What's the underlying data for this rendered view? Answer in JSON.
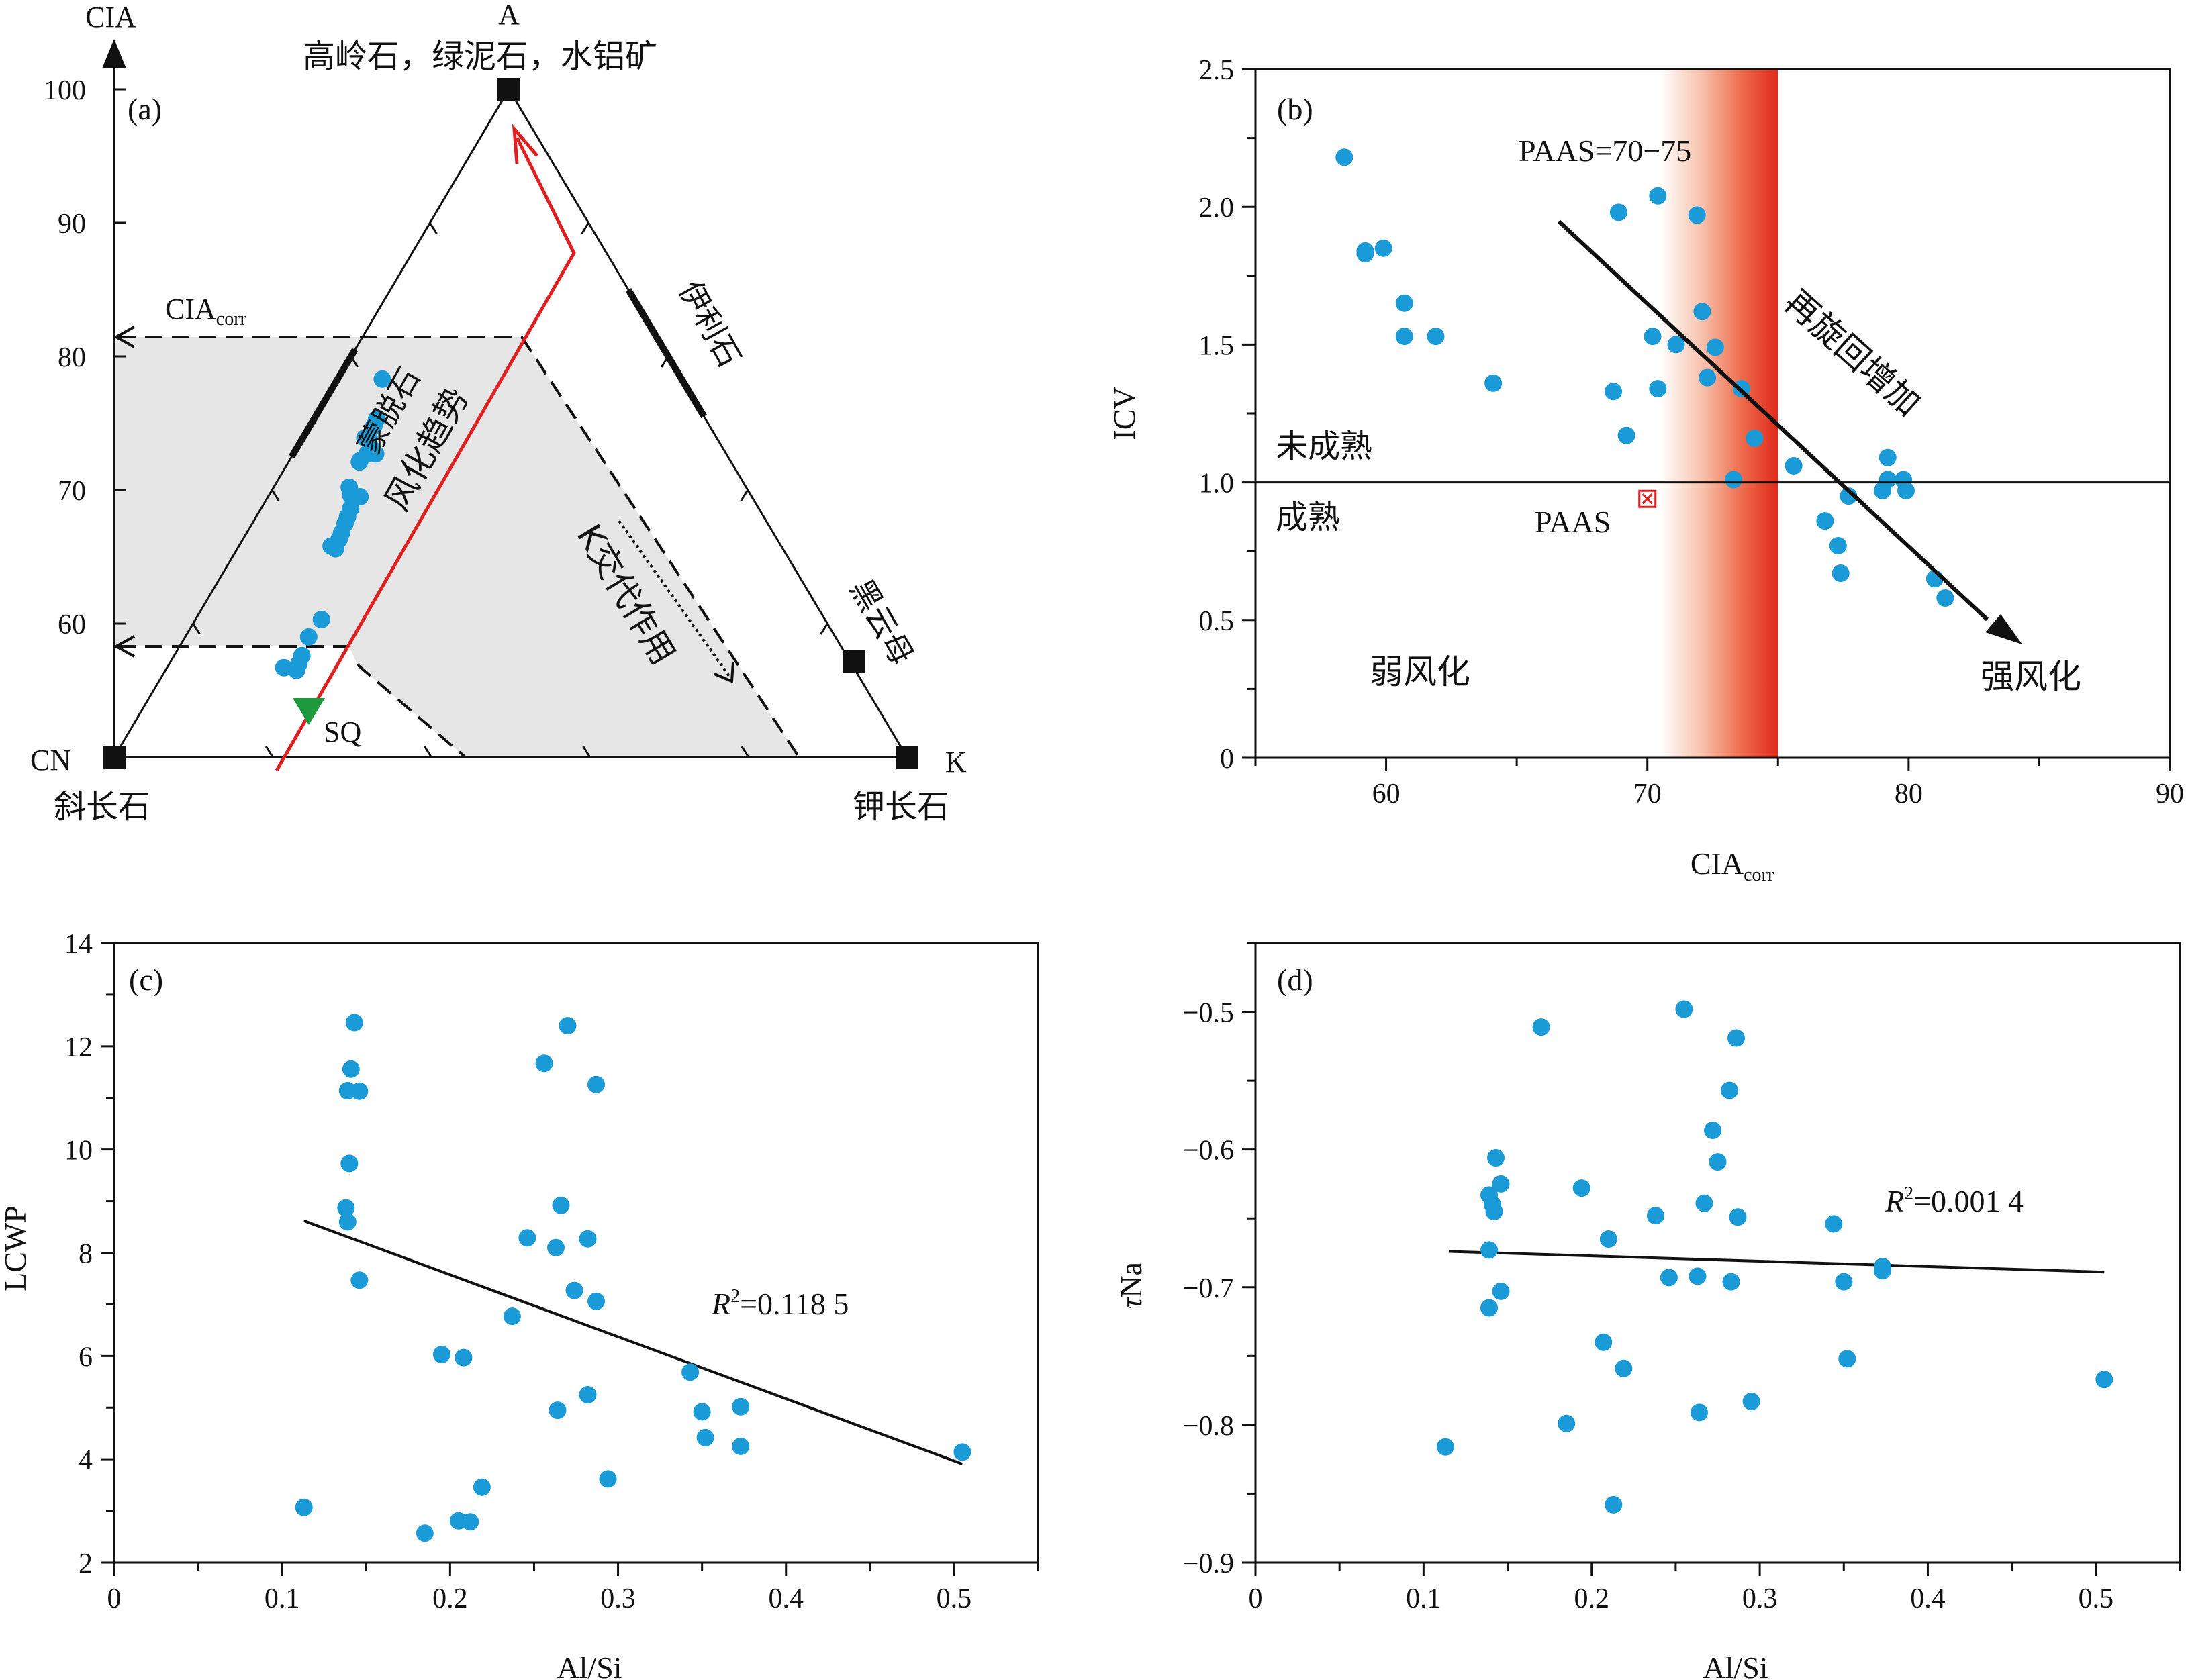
{
  "chart_data": [
    {
      "id": "a",
      "type": "ternary",
      "panel_label": "(a)",
      "yaxis_label": "CIA",
      "yticks": [
        60,
        70,
        80,
        90,
        100
      ],
      "ylim": [
        50,
        100
      ],
      "vertex_labels": {
        "top": "A",
        "top_minerals": "高岭石，绿泥石，水铝矿",
        "left": "CN",
        "left_mineral": "斜长石",
        "right": "K",
        "right_mineral": "钾长石"
      },
      "mineral_markers": [
        {
          "label": "黑云母"
        },
        {
          "label": "蒙脱石"
        },
        {
          "label": "伊利石"
        }
      ],
      "corrections": {
        "label_main": "CIA",
        "label_sub": "corr",
        "cia_values": [
          81,
          58
        ]
      },
      "sq_label": "SQ",
      "trend_label": "风化趋势",
      "k_label": "K交代作用",
      "points": [
        {
          "cia": 56.7,
          "k": 0.17
        },
        {
          "cia": 56.5,
          "k": 0.19
        },
        {
          "cia": 57.0,
          "k": 0.19
        },
        {
          "cia": 57.6,
          "k": 0.19
        },
        {
          "cia": 59.0,
          "k": 0.19
        },
        {
          "cia": 60.3,
          "k": 0.2
        },
        {
          "cia": 65.8,
          "k": 0.17
        },
        {
          "cia": 65.6,
          "k": 0.18
        },
        {
          "cia": 66.3,
          "k": 0.18
        },
        {
          "cia": 66.8,
          "k": 0.18
        },
        {
          "cia": 67.5,
          "k": 0.18
        },
        {
          "cia": 68.0,
          "k": 0.18
        },
        {
          "cia": 68.6,
          "k": 0.18
        },
        {
          "cia": 69.6,
          "k": 0.17
        },
        {
          "cia": 70.2,
          "k": 0.16
        },
        {
          "cia": 69.5,
          "k": 0.19
        },
        {
          "cia": 72.1,
          "k": 0.16
        },
        {
          "cia": 72.2,
          "k": 0.16
        },
        {
          "cia": 73.9,
          "k": 0.15
        },
        {
          "cia": 72.7,
          "k": 0.17
        },
        {
          "cia": 73.9,
          "k": 0.16
        },
        {
          "cia": 74.8,
          "k": 0.16
        },
        {
          "cia": 75.3,
          "k": 0.16
        },
        {
          "cia": 73.0,
          "k": 0.18
        },
        {
          "cia": 72.7,
          "k": 0.19
        },
        {
          "cia": 78.3,
          "k": 0.13
        }
      ]
    },
    {
      "id": "b",
      "type": "scatter",
      "panel_label": "(b)",
      "xlabel": "CIA",
      "xlabel_sub": "corr",
      "ylabel": "ICV",
      "xlim": [
        55,
        90
      ],
      "ylim": [
        0,
        2.5
      ],
      "xticks": [
        60,
        70,
        80,
        90
      ],
      "yticks": [
        0,
        0.5,
        1.0,
        1.5,
        2.0,
        2.5
      ],
      "ytick_labels": [
        "0",
        "0.5",
        "1.0",
        "1.5",
        "2.0",
        "2.5"
      ],
      "band_label": "PAAS=70−75",
      "band": [
        70.5,
        75
      ],
      "hline": 1.0,
      "paas_label": "PAAS",
      "paas_point": {
        "x": 70.0,
        "y": 0.94
      },
      "region_labels": {
        "immature": "未成熟",
        "mature": "成熟",
        "weak": "弱风化",
        "strong": "强风化",
        "recycle": "再旋回增加"
      },
      "colors": {
        "points": "#1a9bd7",
        "band": "#e02a1c",
        "paas": "#e02020"
      },
      "points": [
        {
          "x": 58.4,
          "y": 2.18
        },
        {
          "x": 59.2,
          "y": 1.83
        },
        {
          "x": 59.2,
          "y": 1.84
        },
        {
          "x": 59.9,
          "y": 1.85
        },
        {
          "x": 60.7,
          "y": 1.65
        },
        {
          "x": 60.7,
          "y": 1.53
        },
        {
          "x": 61.9,
          "y": 1.53
        },
        {
          "x": 64.1,
          "y": 1.36
        },
        {
          "x": 68.7,
          "y": 1.33
        },
        {
          "x": 68.9,
          "y": 1.98
        },
        {
          "x": 69.2,
          "y": 1.17
        },
        {
          "x": 70.2,
          "y": 1.53
        },
        {
          "x": 70.4,
          "y": 2.04
        },
        {
          "x": 70.4,
          "y": 1.34
        },
        {
          "x": 71.1,
          "y": 1.5
        },
        {
          "x": 71.9,
          "y": 1.97
        },
        {
          "x": 72.1,
          "y": 1.62
        },
        {
          "x": 72.3,
          "y": 1.38
        },
        {
          "x": 72.6,
          "y": 1.49
        },
        {
          "x": 73.3,
          "y": 1.01
        },
        {
          "x": 73.6,
          "y": 1.34
        },
        {
          "x": 74.1,
          "y": 1.16
        },
        {
          "x": 75.6,
          "y": 1.06
        },
        {
          "x": 76.8,
          "y": 0.86
        },
        {
          "x": 77.3,
          "y": 0.77
        },
        {
          "x": 77.4,
          "y": 0.67
        },
        {
          "x": 77.7,
          "y": 0.95
        },
        {
          "x": 79.0,
          "y": 0.97
        },
        {
          "x": 79.2,
          "y": 1.01
        },
        {
          "x": 79.2,
          "y": 1.09
        },
        {
          "x": 79.8,
          "y": 1.01
        },
        {
          "x": 79.9,
          "y": 0.97
        },
        {
          "x": 81.0,
          "y": 0.65
        },
        {
          "x": 81.4,
          "y": 0.58
        }
      ]
    },
    {
      "id": "c",
      "type": "scatter",
      "panel_label": "(c)",
      "xlabel": "Al/Si",
      "ylabel": "LCWP",
      "xlim": [
        0,
        0.55
      ],
      "ylim": [
        2,
        14
      ],
      "xticks": [
        0,
        0.1,
        0.2,
        0.3,
        0.4,
        0.5
      ],
      "yticks": [
        2,
        4,
        6,
        8,
        10,
        12,
        14
      ],
      "r2_label": "R",
      "r2_value": "=0.118 5",
      "trendline": {
        "x": [
          0.113,
          0.505
        ],
        "y": [
          8.62,
          3.91
        ]
      },
      "colors": {
        "points": "#1a9bd7"
      },
      "points": [
        {
          "x": 0.113,
          "y": 3.07
        },
        {
          "x": 0.138,
          "y": 8.87
        },
        {
          "x": 0.139,
          "y": 8.6
        },
        {
          "x": 0.14,
          "y": 9.73
        },
        {
          "x": 0.139,
          "y": 11.14
        },
        {
          "x": 0.141,
          "y": 11.56
        },
        {
          "x": 0.143,
          "y": 12.46
        },
        {
          "x": 0.146,
          "y": 11.13
        },
        {
          "x": 0.146,
          "y": 7.47
        },
        {
          "x": 0.185,
          "y": 2.57
        },
        {
          "x": 0.195,
          "y": 6.03
        },
        {
          "x": 0.205,
          "y": 2.81
        },
        {
          "x": 0.208,
          "y": 5.97
        },
        {
          "x": 0.212,
          "y": 2.79
        },
        {
          "x": 0.219,
          "y": 3.46
        },
        {
          "x": 0.237,
          "y": 6.77
        },
        {
          "x": 0.246,
          "y": 8.29
        },
        {
          "x": 0.256,
          "y": 11.67
        },
        {
          "x": 0.263,
          "y": 8.1
        },
        {
          "x": 0.264,
          "y": 4.95
        },
        {
          "x": 0.266,
          "y": 8.92
        },
        {
          "x": 0.27,
          "y": 12.4
        },
        {
          "x": 0.274,
          "y": 7.27
        },
        {
          "x": 0.282,
          "y": 8.27
        },
        {
          "x": 0.282,
          "y": 5.25
        },
        {
          "x": 0.287,
          "y": 11.26
        },
        {
          "x": 0.287,
          "y": 7.06
        },
        {
          "x": 0.294,
          "y": 3.62
        },
        {
          "x": 0.343,
          "y": 5.69
        },
        {
          "x": 0.35,
          "y": 4.92
        },
        {
          "x": 0.352,
          "y": 4.42
        },
        {
          "x": 0.373,
          "y": 5.02
        },
        {
          "x": 0.373,
          "y": 4.25
        },
        {
          "x": 0.505,
          "y": 4.14
        }
      ]
    },
    {
      "id": "d",
      "type": "scatter",
      "panel_label": "(d)",
      "xlabel": "Al/Si",
      "ylabel_italic": "τ",
      "ylabel_rest": "Na",
      "xlim": [
        0,
        0.55
      ],
      "ylim": [
        -0.9,
        -0.45
      ],
      "xticks": [
        0,
        0.1,
        0.2,
        0.3,
        0.4,
        0.5
      ],
      "yticks": [
        -0.9,
        -0.8,
        -0.7,
        -0.6,
        -0.5
      ],
      "ytick_labels": [
        "−0.9",
        "−0.8",
        "−0.7",
        "−0.6",
        "−0.5"
      ],
      "r2_label": "R",
      "r2_value": "=0.001 4",
      "trendline": {
        "x": [
          0.115,
          0.505
        ],
        "y": [
          -0.674,
          -0.689
        ]
      },
      "colors": {
        "points": "#1a9bd7"
      },
      "points": [
        {
          "x": 0.113,
          "y": -0.816
        },
        {
          "x": 0.139,
          "y": -0.715
        },
        {
          "x": 0.139,
          "y": -0.673
        },
        {
          "x": 0.139,
          "y": -0.633
        },
        {
          "x": 0.141,
          "y": -0.64
        },
        {
          "x": 0.142,
          "y": -0.645
        },
        {
          "x": 0.143,
          "y": -0.606
        },
        {
          "x": 0.146,
          "y": -0.703
        },
        {
          "x": 0.146,
          "y": -0.625
        },
        {
          "x": 0.17,
          "y": -0.511
        },
        {
          "x": 0.185,
          "y": -0.799
        },
        {
          "x": 0.194,
          "y": -0.628
        },
        {
          "x": 0.207,
          "y": -0.74
        },
        {
          "x": 0.21,
          "y": -0.665
        },
        {
          "x": 0.213,
          "y": -0.858
        },
        {
          "x": 0.219,
          "y": -0.759
        },
        {
          "x": 0.238,
          "y": -0.648
        },
        {
          "x": 0.246,
          "y": -0.693
        },
        {
          "x": 0.255,
          "y": -0.498
        },
        {
          "x": 0.263,
          "y": -0.692
        },
        {
          "x": 0.264,
          "y": -0.791
        },
        {
          "x": 0.267,
          "y": -0.639
        },
        {
          "x": 0.272,
          "y": -0.586
        },
        {
          "x": 0.275,
          "y": -0.609
        },
        {
          "x": 0.282,
          "y": -0.557
        },
        {
          "x": 0.283,
          "y": -0.696
        },
        {
          "x": 0.286,
          "y": -0.519
        },
        {
          "x": 0.287,
          "y": -0.649
        },
        {
          "x": 0.295,
          "y": -0.783
        },
        {
          "x": 0.344,
          "y": -0.654
        },
        {
          "x": 0.35,
          "y": -0.696
        },
        {
          "x": 0.352,
          "y": -0.752
        },
        {
          "x": 0.373,
          "y": -0.685
        },
        {
          "x": 0.373,
          "y": -0.688
        },
        {
          "x": 0.505,
          "y": -0.767
        }
      ]
    }
  ]
}
